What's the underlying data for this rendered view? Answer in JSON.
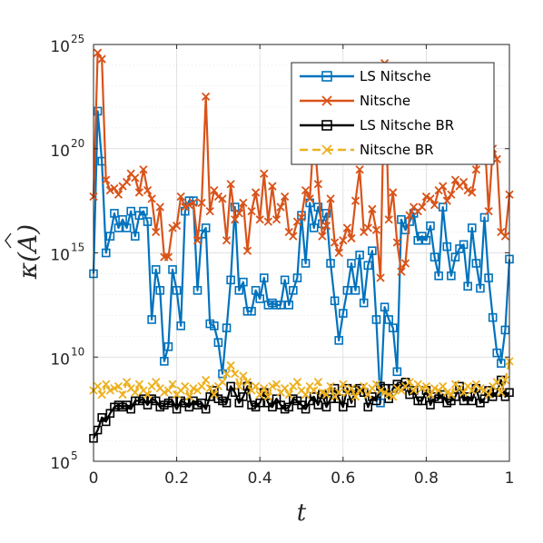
{
  "chart_data": {
    "type": "line",
    "xlabel": "t",
    "ylabel_main": "κ(",
    "ylabel_symbol": "A",
    "ylabel_close": ")",
    "xlim": [
      0,
      1
    ],
    "ylim_log10": [
      5,
      25
    ],
    "y_scale": "log",
    "grid": true,
    "legend_position": "top-right",
    "x_ticks": [
      "0",
      "0.2",
      "0.4",
      "0.6",
      "0.8",
      "1"
    ],
    "x_tick_values": [
      0,
      0.2,
      0.4,
      0.6,
      0.8,
      1
    ],
    "y_ticks_base": "10",
    "y_ticks_exp": [
      "5",
      "10",
      "15",
      "20",
      "25"
    ],
    "y_tick_values_log10": [
      5,
      10,
      15,
      20,
      25
    ],
    "series": [
      {
        "name": "LS Nitsche",
        "color": "#0072BD",
        "marker": "square",
        "dashed": false,
        "x": [
          0,
          0.01,
          0.02,
          0.03,
          0.04,
          0.05,
          0.06,
          0.07,
          0.08,
          0.09,
          0.1,
          0.11,
          0.12,
          0.13,
          0.14,
          0.15,
          0.16,
          0.17,
          0.18,
          0.19,
          0.2,
          0.21,
          0.22,
          0.23,
          0.24,
          0.25,
          0.26,
          0.27,
          0.28,
          0.29,
          0.3,
          0.31,
          0.32,
          0.33,
          0.34,
          0.35,
          0.36,
          0.37,
          0.38,
          0.39,
          0.4,
          0.41,
          0.42,
          0.43,
          0.44,
          0.45,
          0.46,
          0.47,
          0.48,
          0.49,
          0.5,
          0.51,
          0.52,
          0.53,
          0.54,
          0.55,
          0.56,
          0.57,
          0.58,
          0.59,
          0.6,
          0.61,
          0.62,
          0.63,
          0.64,
          0.65,
          0.66,
          0.67,
          0.68,
          0.69,
          0.7,
          0.71,
          0.72,
          0.73,
          0.74,
          0.75,
          0.76,
          0.77,
          0.78,
          0.79,
          0.8,
          0.81,
          0.82,
          0.83,
          0.84,
          0.85,
          0.86,
          0.87,
          0.88,
          0.89,
          0.9,
          0.91,
          0.92,
          0.93,
          0.94,
          0.95,
          0.96,
          0.97,
          0.98,
          0.99,
          1.0
        ],
        "log10_y": [
          14,
          21.8,
          19.4,
          15,
          15.8,
          16.9,
          16.2,
          16.6,
          16.2,
          17,
          15.8,
          16.8,
          17,
          16.5,
          11.8,
          14.2,
          13.2,
          9.8,
          10.5,
          14.2,
          13.2,
          11.5,
          17,
          17.5,
          17.5,
          13.2,
          15.9,
          16.2,
          11.6,
          11.5,
          10.7,
          9.2,
          11.4,
          13.7,
          17.2,
          13.2,
          13.6,
          12.2,
          12.2,
          13.2,
          12.8,
          13.8,
          12.5,
          12.6,
          12.5,
          12.5,
          13.7,
          12.5,
          13.2,
          13.8,
          16.8,
          14.5,
          17.4,
          16.2,
          17.2,
          16.4,
          16.9,
          14.5,
          12.7,
          10.8,
          12.1,
          13.2,
          14.5,
          13.2,
          14.9,
          12.6,
          14.4,
          15.1,
          11.8,
          7.8,
          12.4,
          11.8,
          11.4,
          9.3,
          16.6,
          16.1,
          16.5,
          16.9,
          15.6,
          15.8,
          15.6,
          16.3,
          14.8,
          13.9,
          17.2,
          15.3,
          13.9,
          14.8,
          15.2,
          15.4,
          13.4,
          16.2,
          14.5,
          13.3,
          16.7,
          13.8,
          11.9,
          10.2,
          9.7,
          11.3,
          14.7
        ]
      },
      {
        "name": "Nitsche",
        "color": "#D95319",
        "marker": "x",
        "dashed": false,
        "x": [
          0,
          0.01,
          0.02,
          0.03,
          0.04,
          0.05,
          0.06,
          0.07,
          0.08,
          0.09,
          0.1,
          0.11,
          0.12,
          0.13,
          0.14,
          0.15,
          0.16,
          0.17,
          0.18,
          0.19,
          0.2,
          0.21,
          0.22,
          0.23,
          0.24,
          0.25,
          0.26,
          0.27,
          0.28,
          0.29,
          0.3,
          0.31,
          0.32,
          0.33,
          0.34,
          0.35,
          0.36,
          0.37,
          0.38,
          0.39,
          0.4,
          0.41,
          0.42,
          0.43,
          0.44,
          0.45,
          0.46,
          0.47,
          0.48,
          0.49,
          0.5,
          0.51,
          0.52,
          0.53,
          0.54,
          0.55,
          0.56,
          0.57,
          0.58,
          0.59,
          0.6,
          0.61,
          0.62,
          0.63,
          0.64,
          0.65,
          0.66,
          0.67,
          0.68,
          0.69,
          0.7,
          0.71,
          0.72,
          0.73,
          0.74,
          0.75,
          0.76,
          0.77,
          0.78,
          0.79,
          0.8,
          0.81,
          0.82,
          0.83,
          0.84,
          0.85,
          0.86,
          0.87,
          0.88,
          0.89,
          0.9,
          0.91,
          0.92,
          0.93,
          0.94,
          0.95,
          0.96,
          0.97,
          0.98,
          0.99,
          1.0
        ],
        "log10_y": [
          17.7,
          24.6,
          24.3,
          18.5,
          18,
          18.1,
          17.8,
          18.2,
          18.4,
          18.8,
          18.6,
          17.9,
          19,
          18,
          17.6,
          16,
          17.2,
          14.8,
          14.8,
          16.2,
          16.3,
          17.7,
          17.2,
          17.3,
          17.4,
          15.6,
          17.4,
          22.5,
          17,
          18,
          17.7,
          17.6,
          15.6,
          18.3,
          16.6,
          16.9,
          17.4,
          15.1,
          17,
          17.9,
          16.6,
          18.8,
          16.5,
          18.2,
          16.6,
          17.2,
          17.7,
          16,
          15.8,
          16.5,
          16.7,
          18,
          17.6,
          20.8,
          18.3,
          15.8,
          16.3,
          17.6,
          15.5,
          15,
          15.6,
          16.2,
          15.7,
          17.5,
          19,
          16,
          16.2,
          17.1,
          16.1,
          13.8,
          24.1,
          16.6,
          17.9,
          15.5,
          14.1,
          14.5,
          16.8,
          17.2,
          17,
          17.2,
          17.7,
          17.6,
          17.3,
          18,
          18.2,
          17.5,
          17.8,
          18.5,
          18.2,
          18.4,
          18,
          17.9,
          19,
          20.8,
          20.7,
          17,
          20,
          19.5,
          16,
          15.8,
          17.8
        ]
      },
      {
        "name": "LS Nitsche BR",
        "color": "#000000",
        "marker": "square",
        "dashed": false,
        "x": [
          0,
          0.01,
          0.02,
          0.03,
          0.04,
          0.05,
          0.06,
          0.07,
          0.08,
          0.09,
          0.1,
          0.11,
          0.12,
          0.13,
          0.14,
          0.15,
          0.16,
          0.17,
          0.18,
          0.19,
          0.2,
          0.21,
          0.22,
          0.23,
          0.24,
          0.25,
          0.26,
          0.27,
          0.28,
          0.29,
          0.3,
          0.31,
          0.32,
          0.33,
          0.34,
          0.35,
          0.36,
          0.37,
          0.38,
          0.39,
          0.4,
          0.41,
          0.42,
          0.43,
          0.44,
          0.45,
          0.46,
          0.47,
          0.48,
          0.49,
          0.5,
          0.51,
          0.52,
          0.53,
          0.54,
          0.55,
          0.56,
          0.57,
          0.58,
          0.59,
          0.6,
          0.61,
          0.62,
          0.63,
          0.64,
          0.65,
          0.66,
          0.67,
          0.68,
          0.69,
          0.7,
          0.71,
          0.72,
          0.73,
          0.74,
          0.75,
          0.76,
          0.77,
          0.78,
          0.79,
          0.8,
          0.81,
          0.82,
          0.83,
          0.84,
          0.85,
          0.86,
          0.87,
          0.88,
          0.89,
          0.9,
          0.91,
          0.92,
          0.93,
          0.94,
          0.95,
          0.96,
          0.97,
          0.98,
          0.99,
          1.0
        ],
        "log10_y": [
          6.1,
          6.5,
          7.1,
          6.9,
          7.3,
          7.6,
          7.7,
          7.6,
          7.7,
          7.5,
          7.9,
          7.9,
          8,
          7.7,
          8,
          7.9,
          7.6,
          7.7,
          7.8,
          7.9,
          7.5,
          7.9,
          7.8,
          7.6,
          7.9,
          7.7,
          7.8,
          7.5,
          8.1,
          8.4,
          8,
          7.9,
          7.8,
          8.6,
          8.3,
          7.8,
          8.1,
          8.6,
          7.7,
          7.6,
          7.8,
          8.3,
          7.8,
          7.6,
          8,
          7.7,
          7.5,
          7.6,
          8,
          7.9,
          7.7,
          7.5,
          7.9,
          8.1,
          7.7,
          8.2,
          7.6,
          8,
          8.5,
          8,
          7.6,
          8.5,
          7.8,
          8.4,
          8.5,
          8.3,
          7.6,
          8.1,
          7.9,
          8.6,
          8.5,
          8,
          8.5,
          8.7,
          8.6,
          8.8,
          8.2,
          8.4,
          7.9,
          7.9,
          8.4,
          7.7,
          8.1,
          8,
          8.2,
          7.8,
          7.9,
          8.1,
          8.6,
          7.9,
          8.1,
          7.9,
          8.5,
          7.8,
          8,
          8.4,
          8.1,
          8.3,
          8.9,
          8.1,
          8.3
        ]
      },
      {
        "name": "Nitsche BR",
        "color": "#EDB120",
        "marker": "x",
        "dashed": true,
        "x": [
          0,
          0.01,
          0.02,
          0.03,
          0.04,
          0.05,
          0.06,
          0.07,
          0.08,
          0.09,
          0.1,
          0.11,
          0.12,
          0.13,
          0.14,
          0.15,
          0.16,
          0.17,
          0.18,
          0.19,
          0.2,
          0.21,
          0.22,
          0.23,
          0.24,
          0.25,
          0.26,
          0.27,
          0.28,
          0.29,
          0.3,
          0.31,
          0.32,
          0.33,
          0.34,
          0.35,
          0.36,
          0.37,
          0.38,
          0.39,
          0.4,
          0.41,
          0.42,
          0.43,
          0.44,
          0.45,
          0.46,
          0.47,
          0.48,
          0.49,
          0.5,
          0.51,
          0.52,
          0.53,
          0.54,
          0.55,
          0.56,
          0.57,
          0.58,
          0.59,
          0.6,
          0.61,
          0.62,
          0.63,
          0.64,
          0.65,
          0.66,
          0.67,
          0.68,
          0.69,
          0.7,
          0.71,
          0.72,
          0.73,
          0.74,
          0.75,
          0.76,
          0.77,
          0.78,
          0.79,
          0.8,
          0.81,
          0.82,
          0.83,
          0.84,
          0.85,
          0.86,
          0.87,
          0.88,
          0.89,
          0.9,
          0.91,
          0.92,
          0.93,
          0.94,
          0.95,
          0.96,
          0.97,
          0.98,
          0.99,
          1.0
        ],
        "log10_y": [
          8.4,
          8.6,
          8.2,
          8.7,
          8.4,
          8.5,
          8.6,
          8.2,
          8.8,
          8.5,
          8.3,
          8.7,
          8.4,
          8.2,
          8.6,
          8.8,
          8.5,
          8.3,
          8.4,
          8.7,
          8.2,
          8.4,
          8.6,
          8.1,
          8.5,
          8.4,
          8.6,
          8.9,
          8.5,
          8.2,
          8.6,
          8.8,
          9.2,
          9.6,
          9.2,
          8.6,
          9.1,
          8.8,
          8.4,
          8.6,
          8.2,
          8.5,
          8.1,
          8.6,
          8.7,
          8.3,
          8.5,
          8.2,
          8.6,
          8.8,
          8.4,
          8.2,
          8.6,
          8.4,
          8.8,
          8.3,
          8.2,
          8.6,
          8.1,
          8.3,
          8.7,
          8.3,
          8.5,
          8.1,
          8.4,
          8.6,
          8.2,
          8.5,
          8.7,
          8.4,
          8.3,
          8.2,
          8.1,
          8.5,
          8.4,
          8.6,
          8.8,
          8.4,
          8.7,
          8.5,
          8.6,
          8.2,
          8.5,
          8.4,
          8.6,
          8.3,
          8.2,
          8.7,
          8.5,
          8.3,
          8.6,
          8.4,
          8.7,
          8.5,
          8.4,
          8.2,
          8.6,
          8.8,
          8.3,
          8.9,
          9.8
        ]
      }
    ]
  }
}
